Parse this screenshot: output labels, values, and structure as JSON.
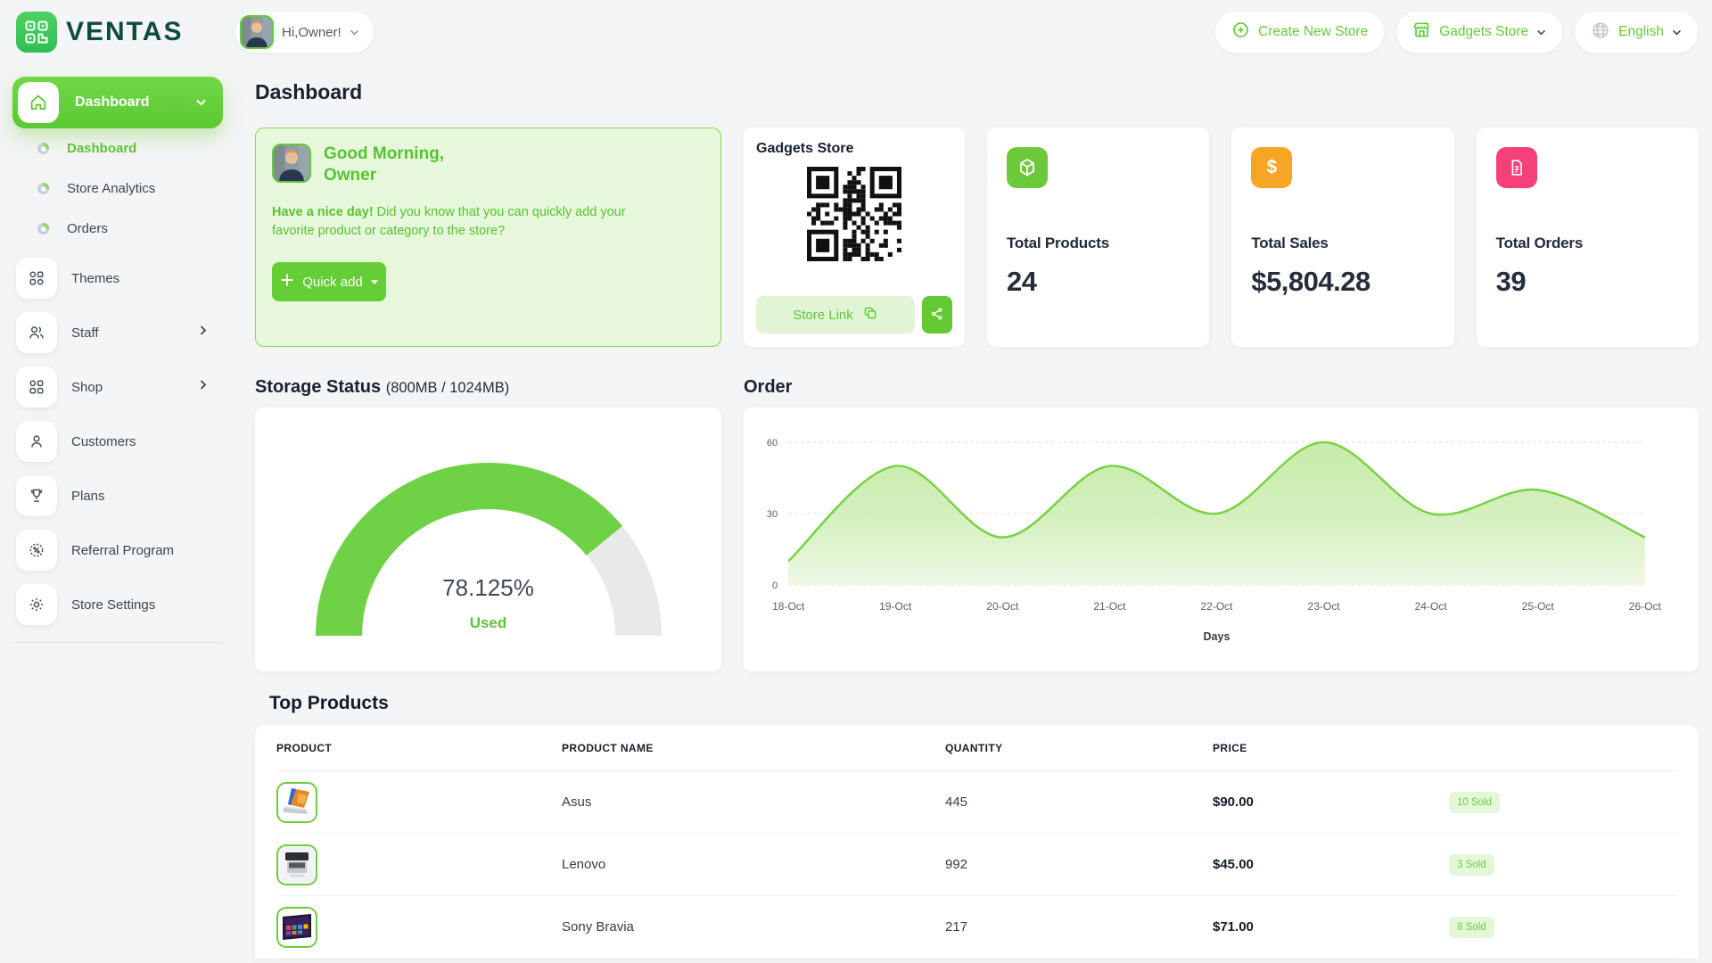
{
  "topbar": {
    "brand": "VENTAS",
    "user_greeting": "Hi,Owner!",
    "create_store_label": "Create New Store",
    "store_name": "Gadgets Store",
    "language": "English"
  },
  "sidebar": {
    "group_label": "Dashboard",
    "sub_items": [
      {
        "label": "Dashboard",
        "active": true
      },
      {
        "label": "Store Analytics",
        "active": false
      },
      {
        "label": "Orders",
        "active": false
      }
    ],
    "items": [
      {
        "label": "Themes"
      },
      {
        "label": "Staff",
        "has_children": true
      },
      {
        "label": "Shop",
        "has_children": true
      },
      {
        "label": "Customers"
      },
      {
        "label": "Plans"
      },
      {
        "label": "Referral Program"
      },
      {
        "label": "Store Settings"
      }
    ]
  },
  "page_title": "Dashboard",
  "greeting_card": {
    "salutation": "Good Morning,",
    "name": "Owner",
    "message_bold": "Have a nice day!",
    "message_rest": " Did you know that you can quickly add your favorite product or category to the store?",
    "quick_add_label": "Quick add"
  },
  "store_card": {
    "title": "Gadgets Store",
    "link_label": "Store Link"
  },
  "stats": [
    {
      "label": "Total Products",
      "value": "24",
      "tile_color": "#6cc93c",
      "icon": "cube-icon"
    },
    {
      "label": "Total Sales",
      "value": "$5,804.28",
      "tile_color": "#f7a525",
      "icon": "dollar-icon"
    },
    {
      "label": "Total Orders",
      "value": "39",
      "tile_color": "#f4417a",
      "icon": "document-icon"
    }
  ],
  "storage_heading": {
    "title": "Storage Status",
    "subtitle": "(800MB / 1024MB)"
  },
  "order_heading": {
    "title": "Order"
  },
  "chart_data": [
    {
      "type": "gauge",
      "title": "Storage Status (800MB / 1024MB)",
      "percent": 78.125,
      "label": "78.125%",
      "caption": "Used",
      "color": "#6fd246",
      "track": "#e9e9e9"
    },
    {
      "type": "area",
      "title": "Order",
      "x": [
        "18-Oct",
        "19-Oct",
        "20-Oct",
        "21-Oct",
        "22-Oct",
        "23-Oct",
        "24-Oct",
        "25-Oct",
        "26-Oct"
      ],
      "series": [
        {
          "name": "Orders",
          "values": [
            10,
            50,
            20,
            50,
            30,
            60,
            30,
            40,
            20
          ]
        }
      ],
      "xlabel": "Days",
      "ylim": [
        0,
        60
      ],
      "yticks": [
        0,
        30,
        60
      ],
      "grid": true,
      "line_color": "#79d144"
    }
  ],
  "top_products": {
    "title": "Top Products",
    "columns": [
      "PRODUCT",
      "PRODUCT NAME",
      "QUANTITY",
      "PRICE",
      ""
    ],
    "rows": [
      {
        "name": "Asus",
        "quantity": "445",
        "price": "$90.00",
        "sold": "10 Sold"
      },
      {
        "name": "Lenovo",
        "quantity": "992",
        "price": "$45.00",
        "sold": "3 Sold"
      },
      {
        "name": "Sony Bravia",
        "quantity": "217",
        "price": "$71.00",
        "sold": "8 Sold"
      }
    ]
  },
  "icons": {
    "brand": "qr-logo-icon",
    "home": "home-icon",
    "sub_bullet": "donut-icon",
    "themes": "grid-icon",
    "staff": "people-icon",
    "shop": "grid-icon",
    "customers": "person-icon",
    "plans": "trophy-icon",
    "referral": "percent-badge-icon",
    "settings": "gear-icon",
    "create": "plus-circle-icon",
    "store": "storefront-icon",
    "language": "globe-icon",
    "expand": "chevron-down-icon",
    "more": "chevron-right-icon",
    "copy": "copy-icon",
    "share": "share-nodes-icon",
    "add": "plus-icon"
  }
}
